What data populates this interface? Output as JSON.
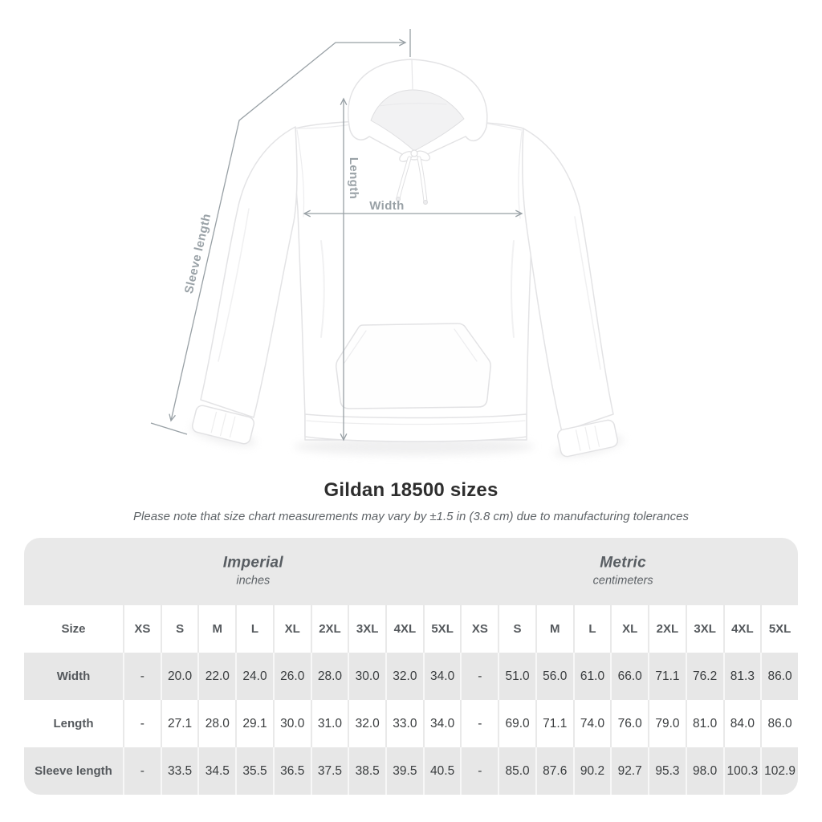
{
  "diagram": {
    "sleeve_length_label": "Sleeve length",
    "length_label": "Length",
    "width_label": "Width"
  },
  "heading": {
    "title": "Gildan 18500 sizes",
    "subtitle": "Please note that size chart measurements may vary by ±1.5 in (3.8 cm) due to manufacturing tolerances"
  },
  "chart_data": {
    "type": "table",
    "title": "Gildan 18500 sizes",
    "note": "Please note that size chart measurements may vary by ±1.5 in (3.8 cm) due to manufacturing tolerances",
    "size_header_label": "Size",
    "column_groups": [
      {
        "name": "Imperial",
        "unit": "inches",
        "sizes": [
          "XS",
          "S",
          "M",
          "L",
          "XL",
          "2XL",
          "3XL",
          "4XL",
          "5XL"
        ]
      },
      {
        "name": "Metric",
        "unit": "centimeters",
        "sizes": [
          "XS",
          "S",
          "M",
          "L",
          "XL",
          "2XL",
          "3XL",
          "4XL",
          "5XL"
        ]
      }
    ],
    "rows": [
      {
        "label": "Width",
        "imperial": [
          "-",
          "20.0",
          "22.0",
          "24.0",
          "26.0",
          "28.0",
          "30.0",
          "32.0",
          "34.0"
        ],
        "metric": [
          "-",
          "51.0",
          "56.0",
          "61.0",
          "66.0",
          "71.1",
          "76.2",
          "81.3",
          "86.0"
        ]
      },
      {
        "label": "Length",
        "imperial": [
          "-",
          "27.1",
          "28.0",
          "29.1",
          "30.0",
          "31.0",
          "32.0",
          "33.0",
          "34.0"
        ],
        "metric": [
          "-",
          "69.0",
          "71.1",
          "74.0",
          "76.0",
          "79.0",
          "81.0",
          "84.0",
          "86.0"
        ]
      },
      {
        "label": "Sleeve length",
        "imperial": [
          "-",
          "33.5",
          "34.5",
          "35.5",
          "36.5",
          "37.5",
          "38.5",
          "39.5",
          "40.5"
        ],
        "metric": [
          "-",
          "85.0",
          "87.6",
          "90.2",
          "92.7",
          "95.3",
          "98.0",
          "100.3",
          "102.9"
        ]
      }
    ]
  },
  "colors": {
    "table_band_gray": "#e9e9e9",
    "row_gray": "#e7e7e7",
    "measure_line": "#98a0a5",
    "measure_label": "#9aa2a7",
    "title_text": "#2e2e2e",
    "note_text": "#5f6468",
    "header_text": "#585d62",
    "value_text": "#3a3d3f"
  }
}
